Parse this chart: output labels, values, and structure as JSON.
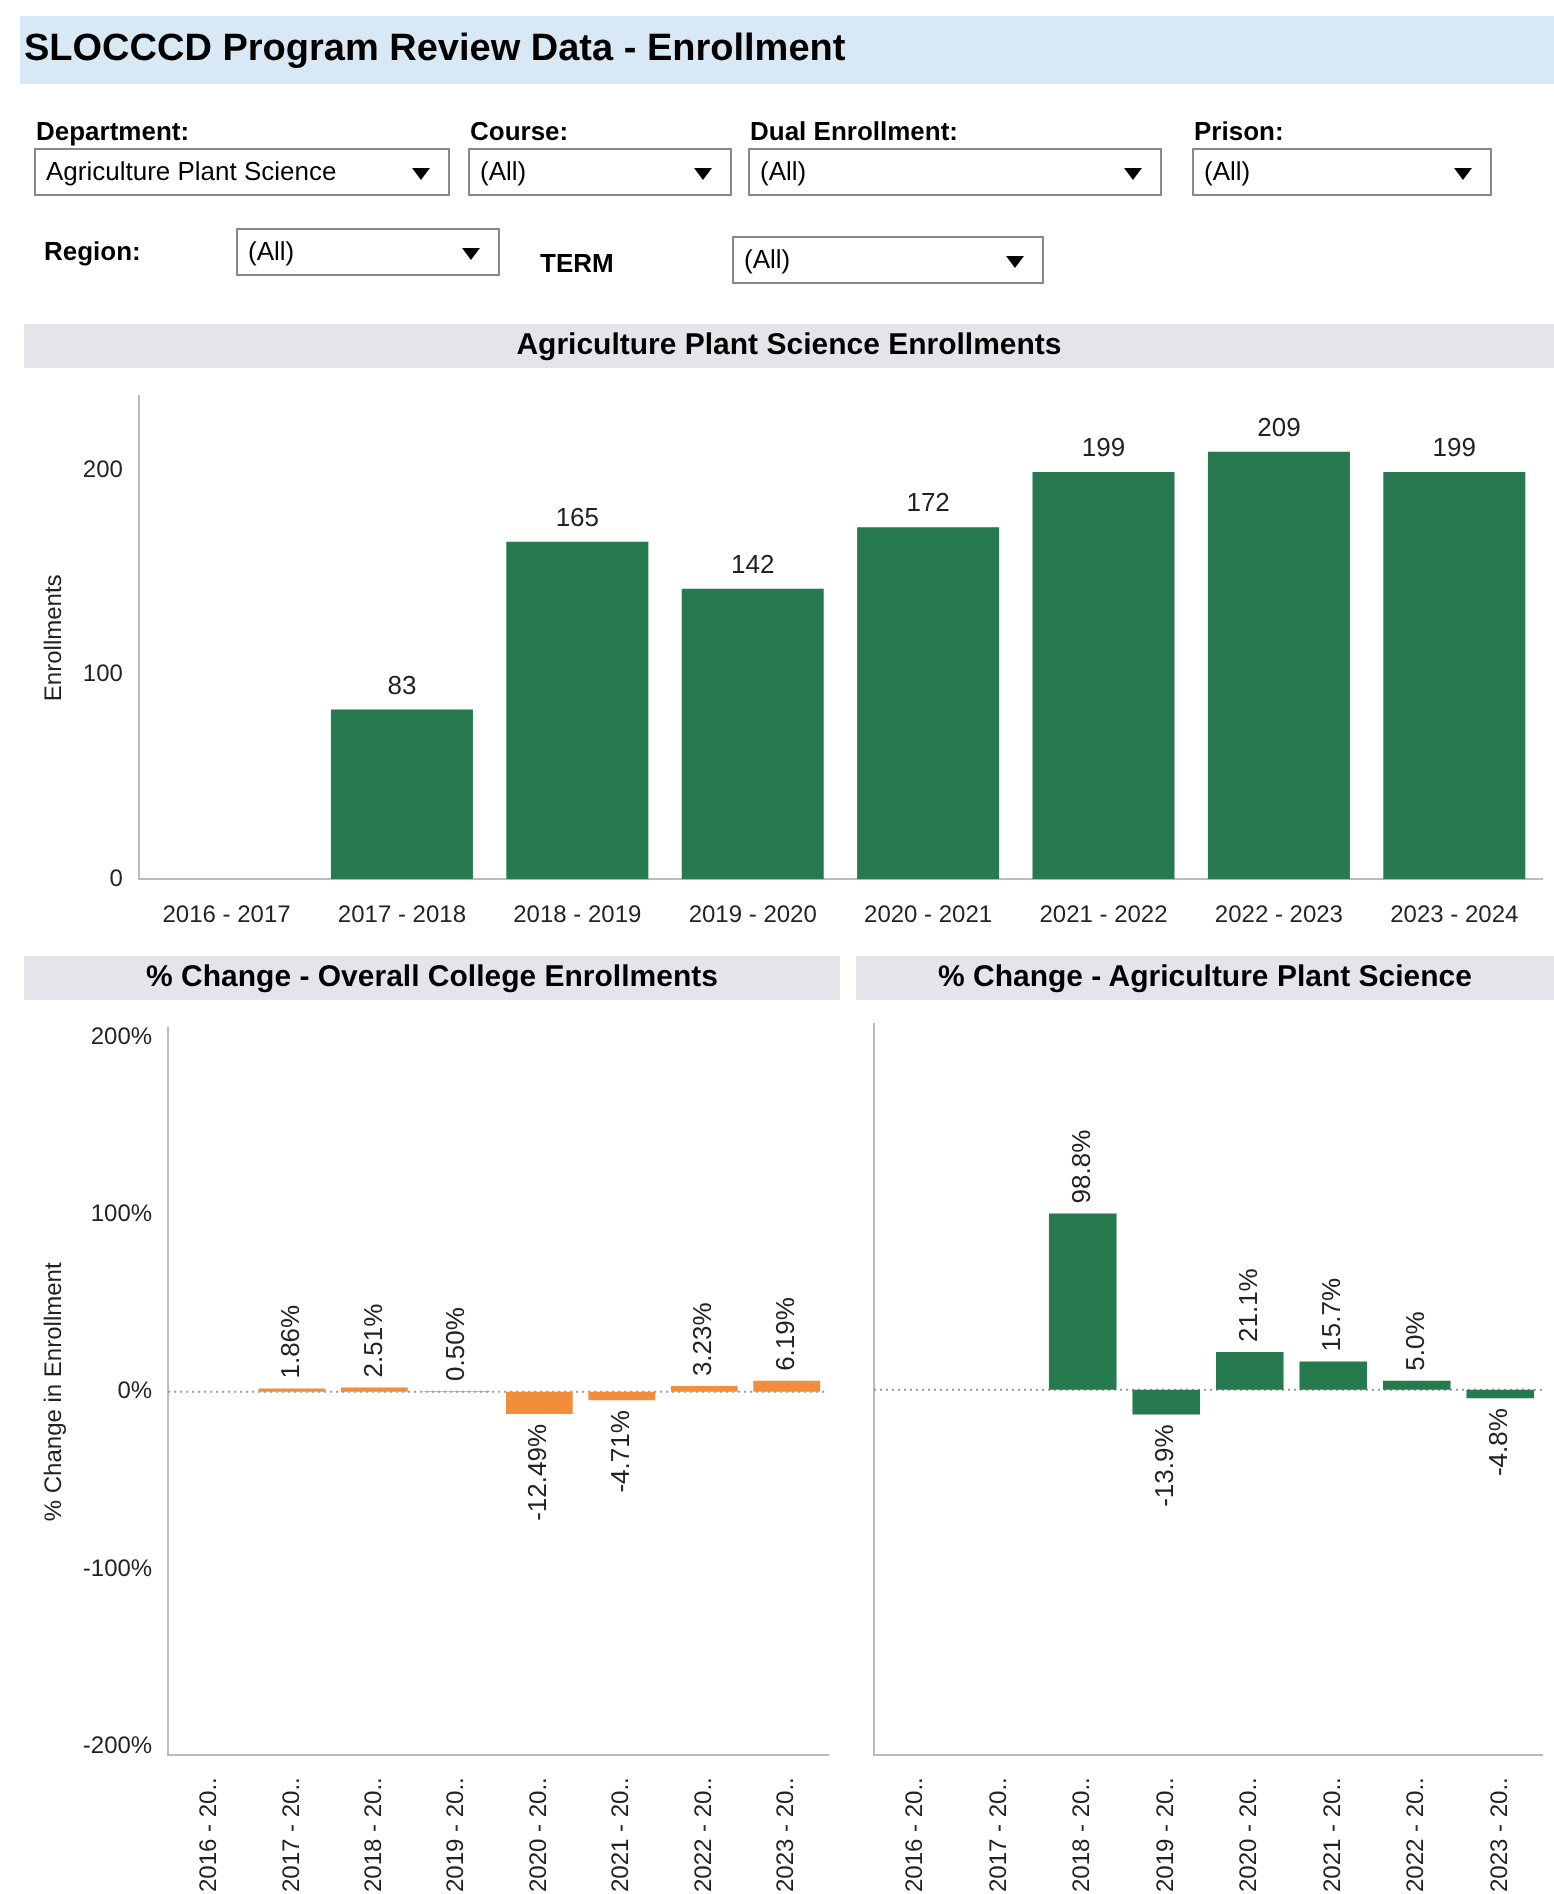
{
  "chart_data": [
    {
      "type": "other",
      "title": "SLOCCCD Program Review Data - Enrollment",
      "annotations": [
        "Department:",
        "Agriculture Plant Science",
        "Course:",
        "(All)",
        "Dual Enrollment:",
        "(All)",
        "Prison:",
        "(All)",
        "Region:",
        "(All)",
        "TERM",
        "(All)"
      ]
    },
    {
      "type": "bar",
      "title": "Agriculture Plant Science Enrollments",
      "ylabel": "Enrollments",
      "categories": [
        "2016 - 2017",
        "2017 - 2018",
        "2018 - 2019",
        "2019 - 2020",
        "2020 - 2021",
        "2021 - 2022",
        "2022 - 2023",
        "2023 - 2024"
      ],
      "values": [
        null,
        83,
        165,
        142,
        172,
        199,
        209,
        199
      ],
      "color": "#27794e",
      "ylim": [
        0,
        236
      ],
      "yticks": [
        0,
        100,
        200
      ],
      "data_labels": true
    },
    {
      "type": "bar",
      "title": "% Change - Overall College Enrollments",
      "ylabel": "% Change in Enrollment",
      "categories": [
        "2016 - 20..",
        "2017 - 20..",
        "2018 - 20..",
        "2019 - 20..",
        "2020 - 20..",
        "2021 - 20..",
        "2022 - 20..",
        "2023 - 20.."
      ],
      "values": [
        null,
        1.86,
        2.51,
        0.5,
        -12.49,
        -4.71,
        3.23,
        6.19
      ],
      "color": "#f28e3b",
      "value_labels": [
        null,
        "1.86%",
        "2.51%",
        "0.50%",
        "-12.49%",
        "-4.71%",
        "3.23%",
        "6.19%"
      ],
      "ylim": [
        -205,
        205
      ],
      "yticks": [
        {
          "value": -200,
          "label": "-200%"
        },
        {
          "value": -100,
          "label": "-100%"
        },
        {
          "value": 0,
          "label": "0%"
        },
        {
          "value": 100,
          "label": "100%"
        },
        {
          "value": 200,
          "label": "200%"
        }
      ],
      "ref_lines": [
        {
          "axis": "y",
          "value": 0,
          "color": "#999999",
          "line_style": "dotted"
        }
      ]
    },
    {
      "type": "bar",
      "title": "% Change - Agriculture Plant Science",
      "categories": [
        "2016 - 20..",
        "2017 - 20..",
        "2018 - 20..",
        "2019 - 20..",
        "2020 - 20..",
        "2021 - 20..",
        "2022 - 20..",
        "2023 - 20.."
      ],
      "values": [
        null,
        null,
        98.8,
        -13.9,
        21.1,
        15.7,
        5.0,
        -4.8
      ],
      "color": "#27794e",
      "value_labels": [
        null,
        null,
        "98.8%",
        "-13.9%",
        "21.1%",
        "15.7%",
        "5.0%",
        "-4.8%"
      ],
      "ylim": [
        -205,
        205
      ],
      "yticks": [
        -200,
        -100,
        0,
        100,
        200
      ],
      "ref_lines": [
        {
          "axis": "y",
          "value": 0,
          "color": "#999999",
          "line_style": "dotted"
        }
      ],
      "tick_labels": "x"
    }
  ]
}
